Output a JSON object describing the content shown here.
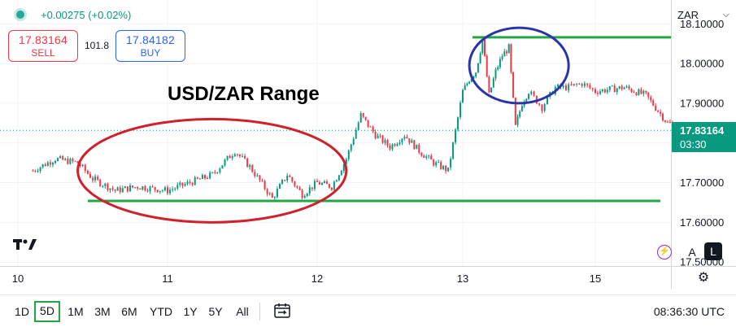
{
  "header": {
    "change": "+0.00275 (+0.02%)",
    "sell_price": "17.83164",
    "sell_label": "SELL",
    "spread": "101.8",
    "buy_price": "17.84182",
    "buy_label": "BUY",
    "currency": "ZAR"
  },
  "colors": {
    "up": "#089981",
    "down": "#f23645",
    "support_line": "#22a745",
    "range_ellipse": "#d0202b",
    "breakout_ellipse": "#2a36a8"
  },
  "chart_data": {
    "type": "line",
    "title": "USD/ZAR Range",
    "xlabel": "",
    "ylabel": "",
    "x_tick_labels": [
      "10",
      "11",
      "12",
      "13",
      "15"
    ],
    "y_tick_labels": [
      "18.10000",
      "18.00000",
      "17.90000",
      "17.80000",
      "17.70000",
      "17.60000",
      "17.50000"
    ],
    "ylim": [
      17.49,
      18.16
    ],
    "grid": true,
    "series": [
      {
        "x": [
          9.95,
          10.1,
          10.25,
          10.4,
          10.5,
          10.65,
          10.8,
          11.0,
          11.15,
          11.3,
          11.45,
          11.55,
          11.7,
          11.8,
          11.9,
          12.0,
          12.1,
          12.2,
          12.3,
          12.4,
          12.5,
          12.6,
          12.7,
          12.8,
          12.9,
          13.0,
          13.1,
          13.2,
          13.3,
          13.4,
          13.5,
          13.6,
          13.7,
          13.8,
          13.9,
          14.0,
          14.2,
          14.4,
          14.6,
          14.8,
          15.0,
          15.2,
          15.35,
          15.5,
          15.65
        ],
        "values": [
          17.71,
          17.73,
          17.76,
          17.75,
          17.71,
          17.68,
          17.69,
          17.68,
          17.7,
          17.72,
          17.78,
          17.74,
          17.66,
          17.72,
          17.67,
          17.7,
          17.69,
          17.76,
          17.87,
          17.82,
          17.79,
          17.82,
          17.78,
          17.75,
          17.73,
          17.93,
          17.96,
          17.98,
          18.06,
          17.92,
          17.98,
          18.02,
          18.04,
          17.84,
          17.9,
          17.93,
          17.89,
          17.94,
          17.94,
          17.95,
          17.93,
          17.94,
          17.92,
          17.85,
          17.83164
        ]
      }
    ],
    "annotations": {
      "resistance_level": 18.066,
      "support_level": 17.654,
      "range_ellipse": {
        "x_start": 10.4,
        "x_end": 12.2,
        "y_top": 17.86,
        "y_bottom": 17.6
      },
      "breakout_ellipse": {
        "x_start": 13.1,
        "x_end": 14.6,
        "y_top": 18.09,
        "y_bottom": 17.9
      }
    },
    "last_price": "17.83164",
    "countdown": "03:30"
  },
  "toolbar": {
    "ranges": [
      "1D",
      "5D",
      "1M",
      "3M",
      "6M",
      "YTD",
      "1Y",
      "5Y",
      "All"
    ],
    "active_range": "5D",
    "clock": "08:36:30 UTC"
  },
  "icons": {
    "logo": "tradingview-logo",
    "flash": "lightning-icon",
    "settings": "settings-icon",
    "compare": "date-range-icon"
  },
  "mode_buttons": {
    "auto": "A",
    "log": "L"
  },
  "logo_text": "17"
}
